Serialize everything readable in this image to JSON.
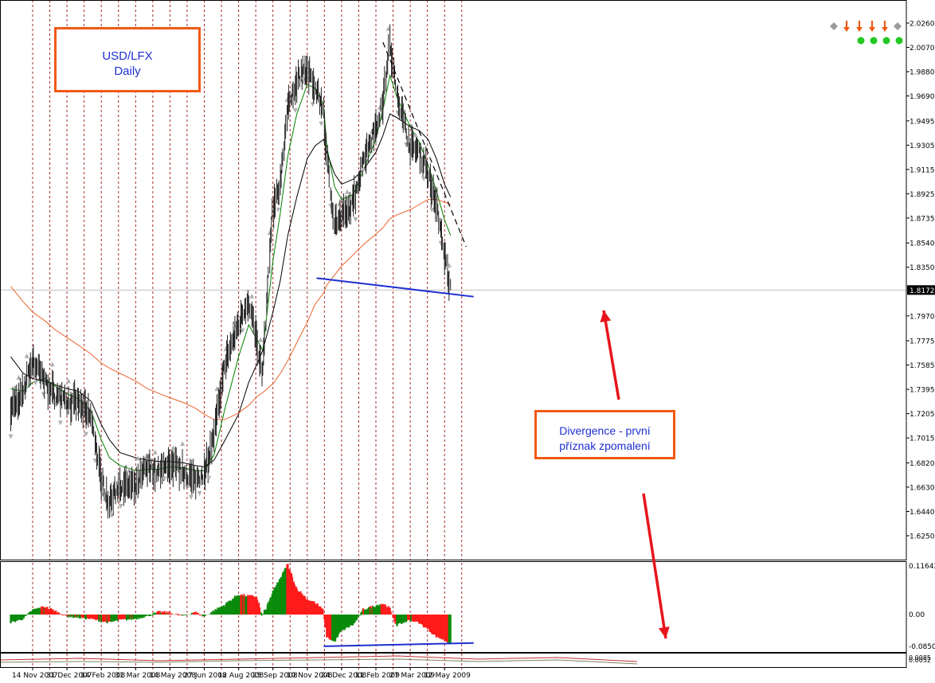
{
  "chart_data": [
    {
      "type": "line",
      "panel": "price",
      "title": "USD/LFX",
      "subtitle": "Daily",
      "x_tick_labels": [
        "14 Nov 2007",
        "31 Dec 2007",
        "14 Feb 2008",
        "31 Mar 2008",
        "14 May 2008",
        "27 Jun 2008",
        "12 Aug 2008",
        "25 Sep 2008",
        "10 Nov 2008",
        "24 Dec 2008",
        "11 Feb 2009",
        "27 Mar 2009",
        "12 May 2009"
      ],
      "y_tick_labels": [
        "2.0260",
        "2.0070",
        "1.9880",
        "1.9690",
        "1.9495",
        "1.9305",
        "1.9115",
        "1.8925",
        "1.8735",
        "1.8540",
        "1.8350",
        "1.7970",
        "1.7775",
        "1.7585",
        "1.7395",
        "1.7205",
        "1.7015",
        "1.6820",
        "1.6630",
        "1.6440",
        "1.6250"
      ],
      "ylim": [
        1.625,
        2.026
      ],
      "current_price_label": "1.8172",
      "current_price": 1.8172,
      "grid": "vertical dashed",
      "series": [
        {
          "color": "#000000",
          "style": "bars",
          "x": [
            "2007-10-15",
            "2007-11-01",
            "2007-11-14",
            "2007-12-01",
            "2007-12-15",
            "2007-12-31",
            "2008-01-15",
            "2008-02-01",
            "2008-02-14",
            "2008-02-25",
            "2008-03-10",
            "2008-03-31",
            "2008-04-15",
            "2008-05-01",
            "2008-05-14",
            "2008-06-01",
            "2008-06-15",
            "2008-06-27",
            "2008-07-10",
            "2008-07-25",
            "2008-08-12",
            "2008-08-25",
            "2008-09-05",
            "2008-09-12",
            "2008-09-25",
            "2008-10-05",
            "2008-10-15",
            "2008-10-27",
            "2008-11-10",
            "2008-11-20",
            "2008-12-01",
            "2008-12-05",
            "2008-12-15",
            "2008-12-24",
            "2009-01-10",
            "2009-01-25",
            "2009-02-11",
            "2009-02-20",
            "2009-03-01",
            "2009-03-10",
            "2009-03-27",
            "2009-04-08",
            "2009-04-20",
            "2009-05-01",
            "2009-05-12",
            "2009-05-20"
          ],
          "values": [
            1.725,
            1.735,
            1.763,
            1.745,
            1.735,
            1.728,
            1.729,
            1.718,
            1.67,
            1.65,
            1.665,
            1.662,
            1.679,
            1.674,
            1.682,
            1.675,
            1.668,
            1.674,
            1.702,
            1.76,
            1.79,
            1.81,
            1.778,
            1.75,
            1.88,
            1.9,
            1.958,
            1.98,
            1.99,
            1.975,
            1.96,
            1.925,
            1.87,
            1.872,
            1.885,
            1.92,
            1.944,
            1.962,
            2.01,
            1.972,
            1.93,
            1.925,
            1.91,
            1.885,
            1.848,
            1.817
          ]
        },
        {
          "color": "#008000",
          "x": [
            "2007-10-15",
            "2007-11-01",
            "2007-11-14",
            "2007-12-01",
            "2007-12-15",
            "2007-12-31",
            "2008-01-15",
            "2008-02-01",
            "2008-02-14",
            "2008-02-25",
            "2008-03-10",
            "2008-03-31",
            "2008-04-15",
            "2008-05-01",
            "2008-05-14",
            "2008-06-01",
            "2008-06-15",
            "2008-06-27",
            "2008-07-10",
            "2008-07-25",
            "2008-08-12",
            "2008-08-25",
            "2008-09-05",
            "2008-09-12",
            "2008-09-25",
            "2008-10-05",
            "2008-10-15",
            "2008-10-27",
            "2008-11-10",
            "2008-11-20",
            "2008-12-01",
            "2008-12-05",
            "2008-12-15",
            "2008-12-24",
            "2009-01-10",
            "2009-01-25",
            "2009-02-11",
            "2009-02-20",
            "2009-03-01",
            "2009-03-10",
            "2009-03-27",
            "2009-04-08",
            "2009-04-20",
            "2009-05-01",
            "2009-05-12",
            "2009-05-20"
          ],
          "values": [
            1.74,
            1.738,
            1.745,
            1.748,
            1.742,
            1.736,
            1.732,
            1.722,
            1.7,
            1.686,
            1.68,
            1.676,
            1.677,
            1.677,
            1.679,
            1.678,
            1.676,
            1.676,
            1.688,
            1.725,
            1.765,
            1.79,
            1.778,
            1.77,
            1.84,
            1.878,
            1.922,
            1.955,
            1.978,
            1.975,
            1.962,
            1.93,
            1.898,
            1.888,
            1.892,
            1.912,
            1.935,
            1.958,
            1.985,
            1.968,
            1.945,
            1.933,
            1.915,
            1.895,
            1.872,
            1.86
          ]
        },
        {
          "color": "#000000",
          "x": [
            "2007-10-15",
            "2007-11-01",
            "2007-11-14",
            "2007-12-01",
            "2007-12-15",
            "2007-12-31",
            "2008-01-15",
            "2008-02-01",
            "2008-02-14",
            "2008-02-25",
            "2008-03-10",
            "2008-03-31",
            "2008-04-15",
            "2008-05-01",
            "2008-05-14",
            "2008-06-01",
            "2008-06-15",
            "2008-06-27",
            "2008-07-10",
            "2008-07-25",
            "2008-08-12",
            "2008-08-25",
            "2008-09-05",
            "2008-09-12",
            "2008-09-25",
            "2008-10-05",
            "2008-10-15",
            "2008-10-27",
            "2008-11-10",
            "2008-11-20",
            "2008-12-01",
            "2008-12-05",
            "2008-12-15",
            "2008-12-24",
            "2009-01-10",
            "2009-01-25",
            "2009-02-11",
            "2009-02-20",
            "2009-03-01",
            "2009-03-10",
            "2009-03-27",
            "2009-04-08",
            "2009-04-20",
            "2009-05-01",
            "2009-05-12",
            "2009-05-20"
          ],
          "values": [
            1.765,
            1.752,
            1.748,
            1.746,
            1.743,
            1.74,
            1.738,
            1.73,
            1.712,
            1.7,
            1.69,
            1.686,
            1.684,
            1.683,
            1.683,
            1.682,
            1.68,
            1.679,
            1.684,
            1.7,
            1.72,
            1.745,
            1.76,
            1.77,
            1.8,
            1.825,
            1.86,
            1.89,
            1.92,
            1.93,
            1.935,
            1.925,
            1.908,
            1.9,
            1.904,
            1.912,
            1.925,
            1.938,
            1.955,
            1.952,
            1.945,
            1.942,
            1.935,
            1.92,
            1.9,
            1.89
          ]
        },
        {
          "color": "#e8642c",
          "x": [
            "2007-10-15",
            "2007-11-01",
            "2007-11-14",
            "2007-12-01",
            "2007-12-15",
            "2007-12-31",
            "2008-01-15",
            "2008-02-01",
            "2008-02-14",
            "2008-02-25",
            "2008-03-10",
            "2008-03-31",
            "2008-04-15",
            "2008-05-01",
            "2008-05-14",
            "2008-06-01",
            "2008-06-15",
            "2008-06-27",
            "2008-07-10",
            "2008-07-25",
            "2008-08-12",
            "2008-08-25",
            "2008-09-05",
            "2008-09-12",
            "2008-09-25",
            "2008-10-05",
            "2008-10-15",
            "2008-10-27",
            "2008-11-10",
            "2008-11-20",
            "2008-12-01",
            "2008-12-05",
            "2008-12-15",
            "2008-12-24",
            "2009-01-10",
            "2009-01-25",
            "2009-02-11",
            "2009-02-20",
            "2009-03-01",
            "2009-03-10",
            "2009-03-27",
            "2009-04-08",
            "2009-04-20",
            "2009-05-01",
            "2009-05-12",
            "2009-05-20"
          ],
          "values": [
            1.82,
            1.808,
            1.8,
            1.793,
            1.786,
            1.78,
            1.774,
            1.767,
            1.76,
            1.756,
            1.752,
            1.746,
            1.74,
            1.736,
            1.733,
            1.729,
            1.725,
            1.72,
            1.716,
            1.716,
            1.721,
            1.727,
            1.734,
            1.737,
            1.744,
            1.752,
            1.762,
            1.776,
            1.792,
            1.806,
            1.815,
            1.821,
            1.829,
            1.836,
            1.845,
            1.853,
            1.861,
            1.866,
            1.873,
            1.876,
            1.88,
            1.884,
            1.888,
            1.888,
            1.886,
            1.884
          ]
        }
      ],
      "trendlines": [
        {
          "color": "#1d2fd1",
          "style": "solid",
          "points": [
            [
              "2008-11-22",
              1.8265
            ],
            [
              "2009-06-20",
              1.812
            ]
          ]
        },
        {
          "color": "#000000",
          "style": "dashed",
          "points": [
            [
              "2009-02-20",
              2.011
            ],
            [
              "2009-06-10",
              1.851
            ]
          ]
        }
      ]
    },
    {
      "type": "bar",
      "panel": "oscillator",
      "y_tick_labels": [
        "0.11642",
        "0.00",
        "-0.08508"
      ],
      "ylim": [
        -0.08508,
        0.11642
      ],
      "colors": {
        "positive": "#0a8a0a",
        "negative": "#ff1a1a"
      },
      "x": [
        "2007-10-15",
        "2007-11-01",
        "2007-11-14",
        "2007-12-01",
        "2007-12-15",
        "2007-12-31",
        "2008-01-15",
        "2008-02-01",
        "2008-02-14",
        "2008-02-25",
        "2008-03-10",
        "2008-03-31",
        "2008-04-15",
        "2008-05-01",
        "2008-05-14",
        "2008-06-01",
        "2008-06-15",
        "2008-06-27",
        "2008-07-10",
        "2008-07-25",
        "2008-08-12",
        "2008-08-25",
        "2008-09-05",
        "2008-09-12",
        "2008-09-25",
        "2008-10-05",
        "2008-10-15",
        "2008-10-27",
        "2008-11-10",
        "2008-11-20",
        "2008-12-01",
        "2008-12-05",
        "2008-12-15",
        "2008-12-24",
        "2009-01-10",
        "2009-01-25",
        "2009-02-11",
        "2009-02-20",
        "2009-03-01",
        "2009-03-10",
        "2009-03-27",
        "2009-04-08",
        "2009-04-20",
        "2009-05-01",
        "2009-05-12",
        "2009-05-20"
      ],
      "values": [
        -0.022,
        -0.012,
        0.01,
        0.018,
        0.008,
        -0.004,
        -0.008,
        -0.012,
        -0.018,
        -0.022,
        -0.015,
        -0.012,
        -0.004,
        0.006,
        0.004,
        -0.004,
        0.006,
        -0.005,
        0.008,
        0.022,
        0.045,
        0.042,
        0.04,
        -0.005,
        0.05,
        0.08,
        0.115,
        0.06,
        0.035,
        0.028,
        0.01,
        -0.06,
        -0.075,
        -0.045,
        -0.028,
        0.012,
        0.02,
        0.025,
        0.015,
        -0.03,
        -0.015,
        -0.022,
        -0.04,
        -0.06,
        -0.07,
        -0.078
      ],
      "trendlines": [
        {
          "color": "#1d2fd1",
          "style": "solid",
          "points": [
            [
              "2008-12-01",
              -0.087
            ],
            [
              "2009-06-20",
              -0.078
            ]
          ]
        }
      ]
    },
    {
      "type": "line",
      "panel": "third-indicator",
      "y_tick_labels": [
        "0.0085",
        "0.0052"
      ]
    }
  ],
  "annotations": {
    "title_box": {
      "line1": "USD/LFX",
      "line2": "Daily"
    },
    "divergence_box": {
      "line1": "Divergence - první",
      "line2": "příznak zpomalení"
    }
  },
  "arrows": [
    {
      "name": "price-divergence-arrow",
      "color": "#e8141b"
    },
    {
      "name": "oscillator-divergence-arrow",
      "color": "#e8141b"
    }
  ],
  "signal_panel": {
    "row1": [
      "diamond",
      "down-arrow",
      "down-arrow",
      "down-arrow",
      "down-arrow",
      "diamond"
    ],
    "row1_colors": [
      "#9a9a9a",
      "#f05a14",
      "#f05a14",
      "#f05a14",
      "#f05a14",
      "#9a9a9a"
    ],
    "row2": [
      "dot",
      "dot",
      "dot",
      "dot"
    ],
    "row2_color": "#22c822"
  }
}
